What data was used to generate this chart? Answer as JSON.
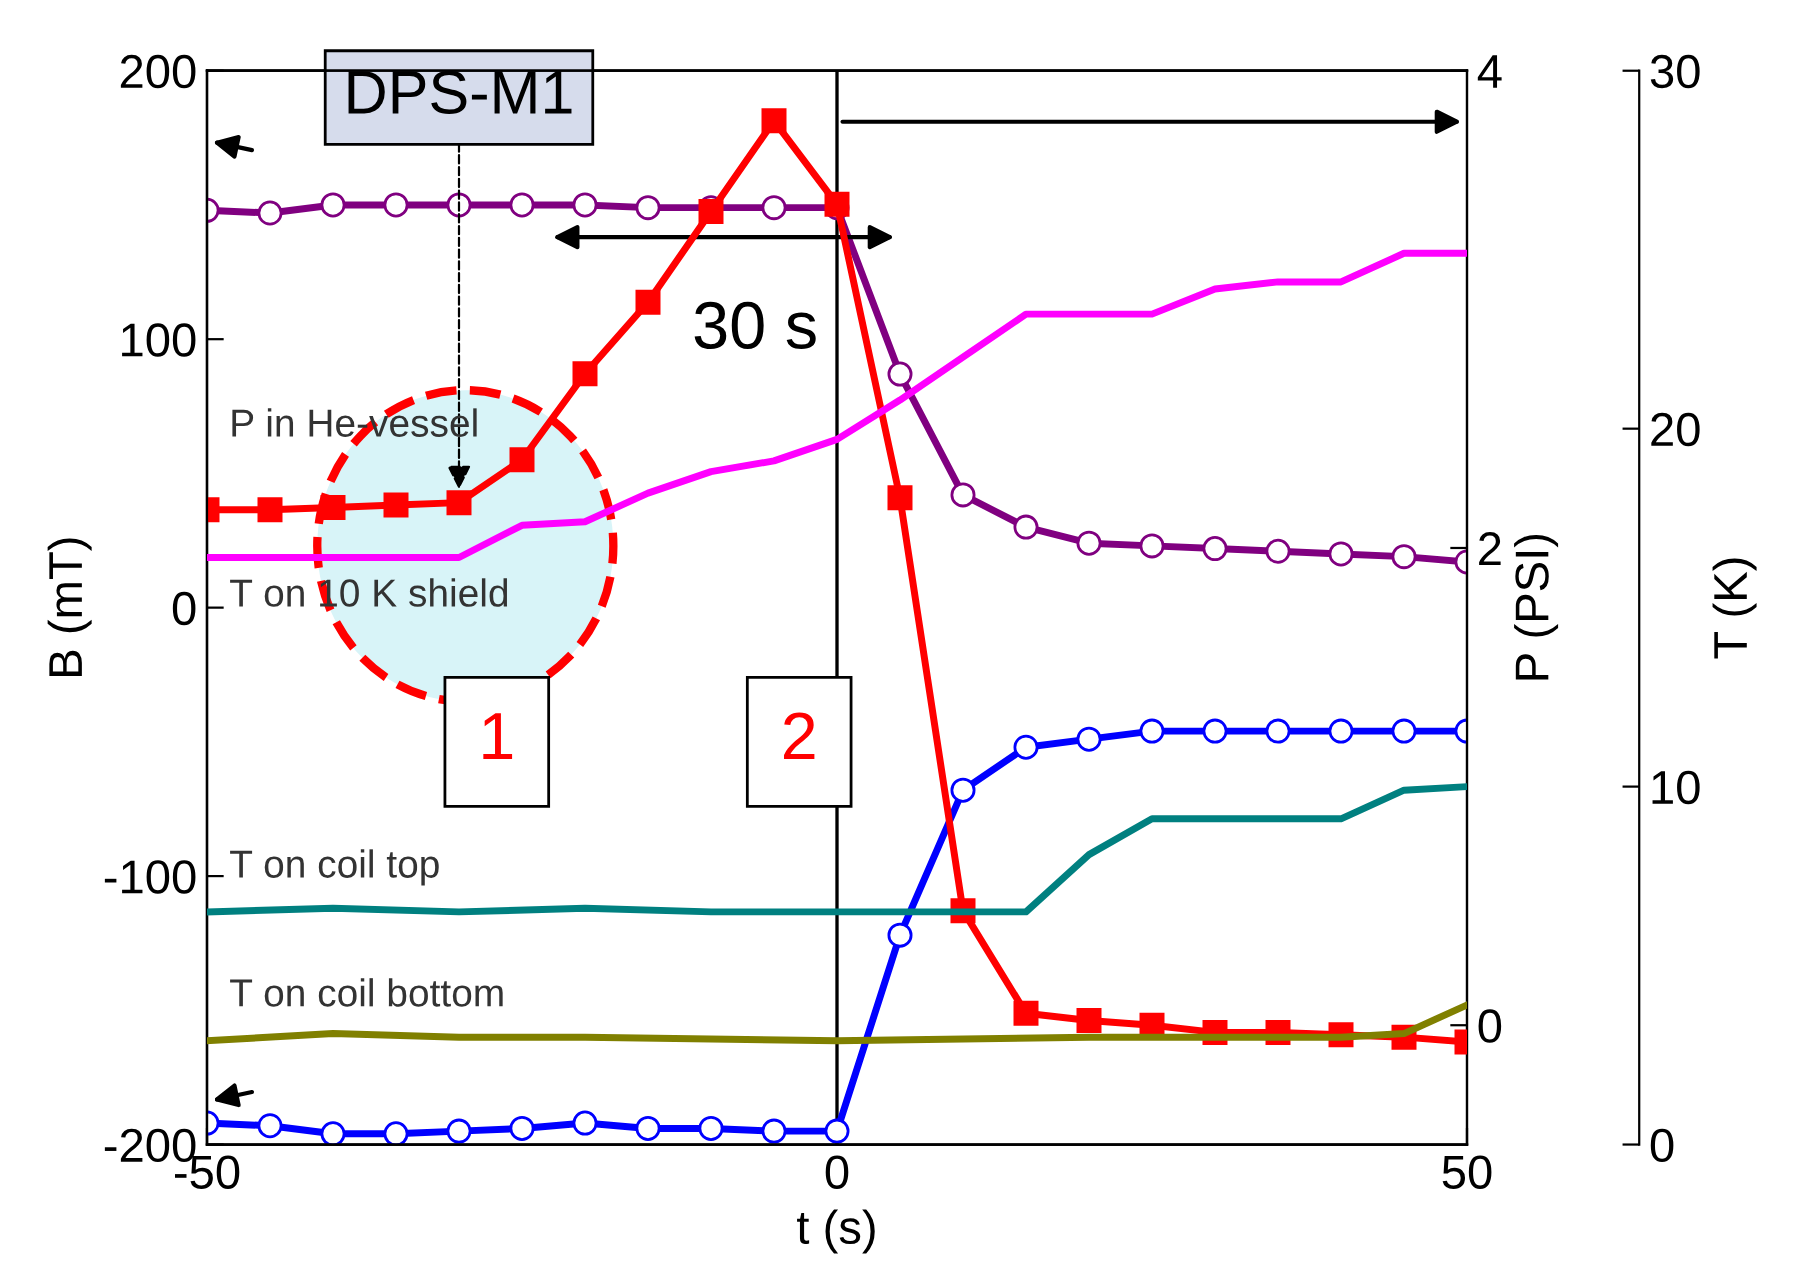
{
  "chart_data": {
    "type": "line",
    "xlabel": "t (s)",
    "ylabel": "B (mT)",
    "y2label": "P (PSI)",
    "y3label": "T (K)",
    "xlim": [
      -50,
      50
    ],
    "xticks": [
      -50,
      0,
      50
    ],
    "ylim": [
      -200,
      200
    ],
    "yticks": [
      -200,
      -100,
      0,
      100,
      200
    ],
    "y2lim": [
      -0.5,
      4
    ],
    "y2ticks": [
      0,
      2,
      4
    ],
    "y3lim": [
      0,
      30
    ],
    "y3ticks": [
      0,
      10,
      20,
      30
    ],
    "grid": false,
    "legend": false,
    "series": [
      {
        "color": "#800080",
        "marker": "circle",
        "x": [
          -50,
          -45,
          -40,
          -35,
          -30,
          -25,
          -20,
          -15,
          -10,
          -5,
          0,
          5,
          10,
          15,
          20,
          25,
          30,
          35,
          40,
          45,
          50
        ],
        "values": [
          148,
          147,
          150,
          150,
          150,
          150,
          150,
          149,
          149,
          149,
          149,
          87,
          42,
          30,
          24,
          23,
          22,
          21,
          20,
          19,
          17
        ]
      },
      {
        "color": "#0000ff",
        "marker": "circle",
        "x": [
          -50,
          -45,
          -40,
          -35,
          -30,
          -25,
          -20,
          -15,
          -10,
          -5,
          0,
          5,
          10,
          15,
          20,
          25,
          30,
          35,
          40,
          45,
          50
        ],
        "values": [
          -192,
          -193,
          -196,
          -196,
          -195,
          -194,
          -192,
          -194,
          -194,
          -195,
          -195,
          -122,
          -68,
          -52,
          -49,
          -46,
          -46,
          -46,
          -46,
          -46,
          -46
        ]
      },
      {
        "name": "P in He-vessel",
        "color": "#ff0000",
        "marker": "square",
        "axis": "y2",
        "x": [
          -50,
          -45,
          -40,
          -35,
          -30,
          -25,
          -20,
          -15,
          -10,
          -5,
          0,
          5,
          10,
          15,
          20,
          25,
          30,
          35,
          40,
          45,
          50
        ],
        "values": [
          2.16,
          2.16,
          2.17,
          2.18,
          2.19,
          2.37,
          2.73,
          3.03,
          3.41,
          3.79,
          3.44,
          2.21,
          0.48,
          0.05,
          0.02,
          0.0,
          -0.03,
          -0.03,
          -0.04,
          -0.05,
          -0.07
        ]
      },
      {
        "name": "T on 10 K shield",
        "color": "#ff00ff",
        "marker": "none",
        "axis": "y3",
        "x": [
          -50,
          -30,
          -25,
          -20,
          -15,
          -10,
          -5,
          0,
          5,
          10,
          15,
          20,
          25,
          30,
          35,
          40,
          45,
          50
        ],
        "values": [
          16.4,
          16.4,
          17.3,
          17.4,
          18.2,
          18.8,
          19.1,
          19.7,
          20.8,
          22.0,
          23.2,
          23.2,
          23.2,
          23.9,
          24.1,
          24.1,
          24.9,
          24.9
        ]
      },
      {
        "name": "T on coil top",
        "color": "#008080",
        "marker": "none",
        "axis": "y3",
        "x": [
          -50,
          -40,
          -30,
          -20,
          -10,
          0,
          15,
          20,
          25,
          30,
          40,
          45,
          50
        ],
        "values": [
          6.5,
          6.6,
          6.5,
          6.6,
          6.5,
          6.5,
          6.5,
          8.1,
          9.1,
          9.1,
          9.1,
          9.9,
          10.0
        ]
      },
      {
        "name": "T on coil bottom",
        "color": "#808000",
        "marker": "none",
        "axis": "y3",
        "x": [
          -50,
          -40,
          -30,
          -20,
          0,
          20,
          40,
          45,
          50
        ],
        "values": [
          2.9,
          3.1,
          3.0,
          3.0,
          2.9,
          3.0,
          3.0,
          3.1,
          3.9
        ]
      }
    ],
    "ref_lines": [
      {
        "axis": "x",
        "value": 0,
        "color": "#000000"
      }
    ],
    "annotations": [
      {
        "text": "DPS-M1",
        "x": -30,
        "y": 42
      },
      "30 s",
      "1",
      "2"
    ]
  }
}
